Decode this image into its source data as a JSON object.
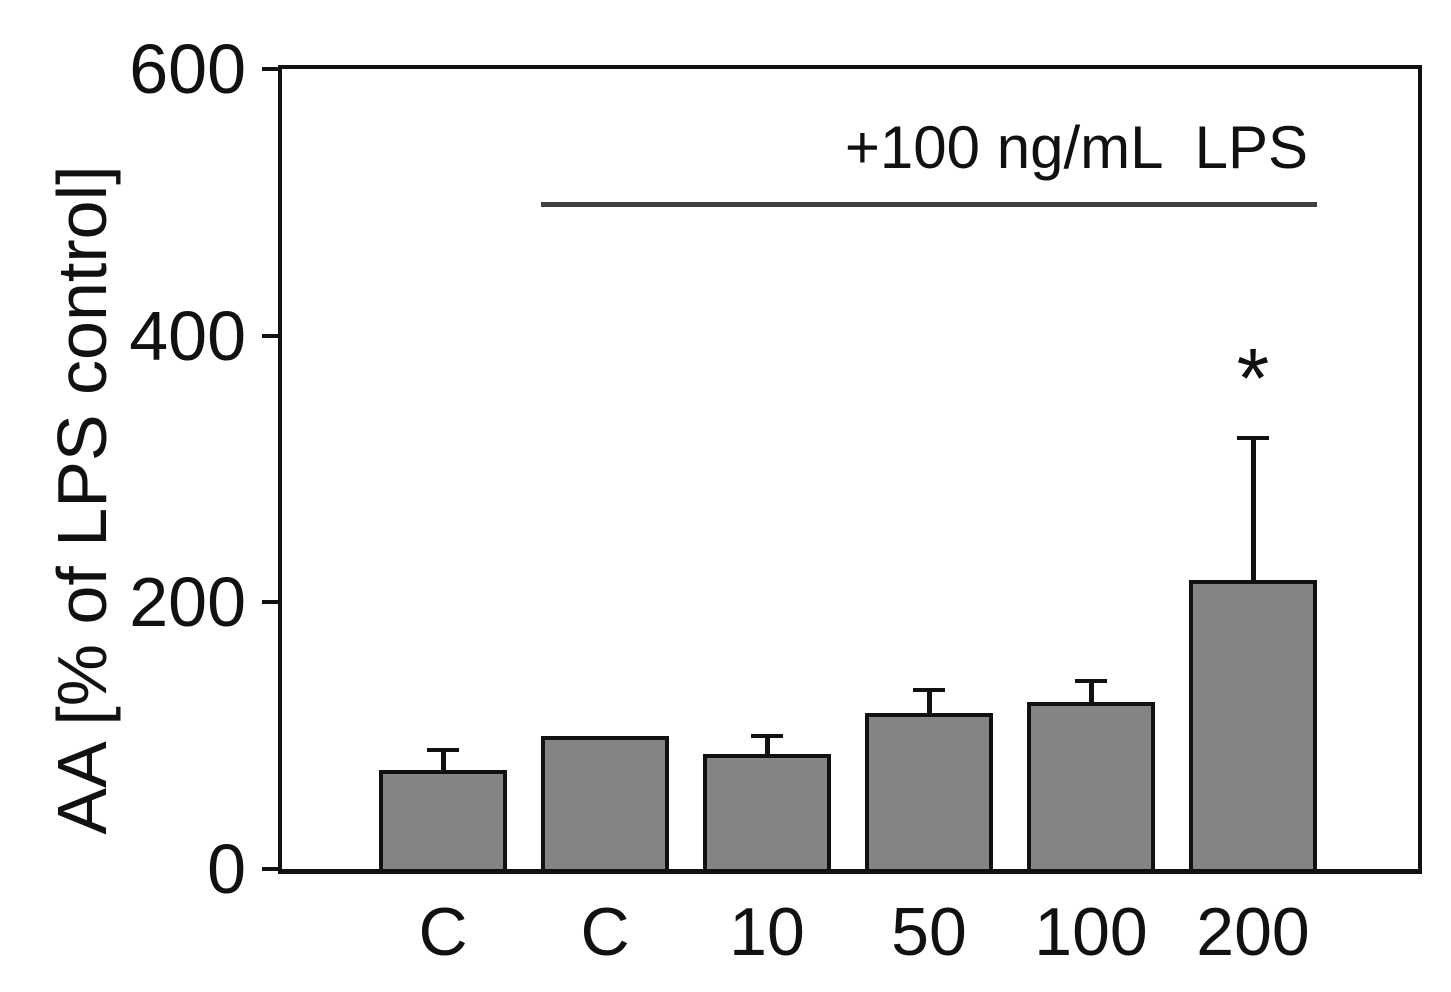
{
  "chart_data": {
    "type": "bar",
    "title": "",
    "xlabel": "",
    "ylabel": "AA [% of LPS control]",
    "categories": [
      "C",
      "C",
      "10",
      "50",
      "100",
      "200"
    ],
    "values": [
      74,
      100,
      86,
      117,
      125,
      217
    ],
    "errors_plus": [
      15,
      0,
      14,
      17,
      16,
      106
    ],
    "ylim": [
      0,
      600
    ],
    "yticks": [
      0,
      200,
      400,
      600
    ],
    "grid": "off",
    "legend": "none",
    "annotation": {
      "label": "+100 ng/mL  LPS",
      "underline_y_value": 500,
      "underline_start_category_index": 1,
      "underline_end_category_index": 5
    },
    "significance_markers": [
      {
        "category_index": 5,
        "symbol": "*"
      }
    ],
    "colors": {
      "background": "#ffffff",
      "bar_fill": "#848484",
      "bar_border": "#111111",
      "axis": "#111111",
      "error_bar": "#111111",
      "annotation_line": "#404040",
      "text": "#111111"
    }
  }
}
